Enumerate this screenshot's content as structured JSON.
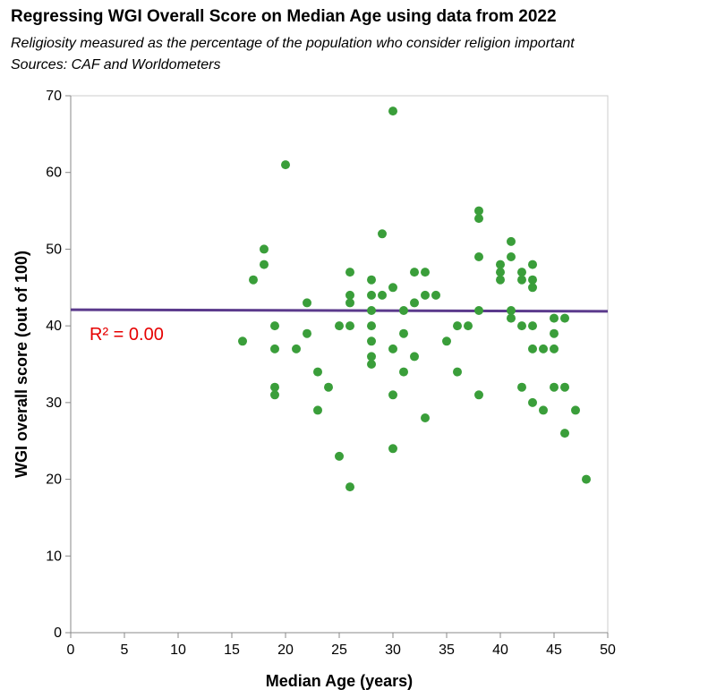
{
  "title": "Regressing WGI Overall Score on Median Age using data from 2022",
  "subtitle_lines": [
    "Religiosity measured as the percentage of the population who consider religion important",
    "Sources: CAF and Worldometers"
  ],
  "colors": {
    "points": "#3a9e3a",
    "regression_line": "#5b3a8c",
    "annotation": "#e60000",
    "frame": "#cccccc"
  },
  "chart_data": {
    "type": "scatter",
    "xlabel": "Median Age (years)",
    "ylabel": "WGI overall score (out of 100)",
    "xlim": [
      0,
      50
    ],
    "ylim": [
      0,
      70
    ],
    "x_ticks": [
      "0",
      "5",
      "10",
      "15",
      "20",
      "25",
      "30",
      "35",
      "40",
      "45",
      "50"
    ],
    "y_ticks": [
      "0",
      "10",
      "20",
      "30",
      "40",
      "50",
      "60",
      "70"
    ],
    "grid": false,
    "annotation": "R² = 0.00",
    "regression_line": {
      "x": [
        0,
        50
      ],
      "y": [
        42.1,
        41.9
      ]
    },
    "points": [
      {
        "x": 16,
        "y": 38
      },
      {
        "x": 17,
        "y": 46
      },
      {
        "x": 18,
        "y": 50
      },
      {
        "x": 18,
        "y": 48
      },
      {
        "x": 19,
        "y": 40
      },
      {
        "x": 19,
        "y": 37
      },
      {
        "x": 19,
        "y": 32
      },
      {
        "x": 19,
        "y": 31
      },
      {
        "x": 20,
        "y": 61
      },
      {
        "x": 21,
        "y": 37
      },
      {
        "x": 22,
        "y": 43
      },
      {
        "x": 22,
        "y": 39
      },
      {
        "x": 23,
        "y": 34
      },
      {
        "x": 23,
        "y": 29
      },
      {
        "x": 24,
        "y": 32
      },
      {
        "x": 25,
        "y": 40
      },
      {
        "x": 25,
        "y": 23
      },
      {
        "x": 26,
        "y": 47
      },
      {
        "x": 26,
        "y": 44
      },
      {
        "x": 26,
        "y": 43
      },
      {
        "x": 26,
        "y": 40
      },
      {
        "x": 26,
        "y": 19
      },
      {
        "x": 28,
        "y": 46
      },
      {
        "x": 28,
        "y": 44
      },
      {
        "x": 28,
        "y": 42
      },
      {
        "x": 28,
        "y": 40
      },
      {
        "x": 28,
        "y": 38
      },
      {
        "x": 28,
        "y": 36
      },
      {
        "x": 28,
        "y": 35
      },
      {
        "x": 29,
        "y": 52
      },
      {
        "x": 29,
        "y": 44
      },
      {
        "x": 30,
        "y": 68
      },
      {
        "x": 30,
        "y": 45
      },
      {
        "x": 30,
        "y": 37
      },
      {
        "x": 30,
        "y": 31
      },
      {
        "x": 30,
        "y": 24
      },
      {
        "x": 31,
        "y": 42
      },
      {
        "x": 31,
        "y": 39
      },
      {
        "x": 31,
        "y": 34
      },
      {
        "x": 32,
        "y": 47
      },
      {
        "x": 32,
        "y": 43
      },
      {
        "x": 32,
        "y": 36
      },
      {
        "x": 33,
        "y": 47
      },
      {
        "x": 33,
        "y": 44
      },
      {
        "x": 33,
        "y": 28
      },
      {
        "x": 34,
        "y": 44
      },
      {
        "x": 35,
        "y": 38
      },
      {
        "x": 36,
        "y": 40
      },
      {
        "x": 36,
        "y": 34
      },
      {
        "x": 37,
        "y": 40
      },
      {
        "x": 38,
        "y": 55
      },
      {
        "x": 38,
        "y": 54
      },
      {
        "x": 38,
        "y": 49
      },
      {
        "x": 38,
        "y": 42
      },
      {
        "x": 38,
        "y": 31
      },
      {
        "x": 40,
        "y": 48
      },
      {
        "x": 40,
        "y": 47
      },
      {
        "x": 40,
        "y": 46
      },
      {
        "x": 41,
        "y": 51
      },
      {
        "x": 41,
        "y": 49
      },
      {
        "x": 41,
        "y": 42
      },
      {
        "x": 41,
        "y": 41
      },
      {
        "x": 42,
        "y": 47
      },
      {
        "x": 42,
        "y": 46
      },
      {
        "x": 42,
        "y": 40
      },
      {
        "x": 42,
        "y": 32
      },
      {
        "x": 43,
        "y": 48
      },
      {
        "x": 43,
        "y": 46
      },
      {
        "x": 43,
        "y": 45
      },
      {
        "x": 43,
        "y": 40
      },
      {
        "x": 43,
        "y": 37
      },
      {
        "x": 43,
        "y": 30
      },
      {
        "x": 44,
        "y": 37
      },
      {
        "x": 44,
        "y": 29
      },
      {
        "x": 45,
        "y": 41
      },
      {
        "x": 45,
        "y": 39
      },
      {
        "x": 45,
        "y": 37
      },
      {
        "x": 45,
        "y": 32
      },
      {
        "x": 46,
        "y": 41
      },
      {
        "x": 46,
        "y": 32
      },
      {
        "x": 46,
        "y": 26
      },
      {
        "x": 47,
        "y": 29
      },
      {
        "x": 48,
        "y": 20
      }
    ]
  }
}
